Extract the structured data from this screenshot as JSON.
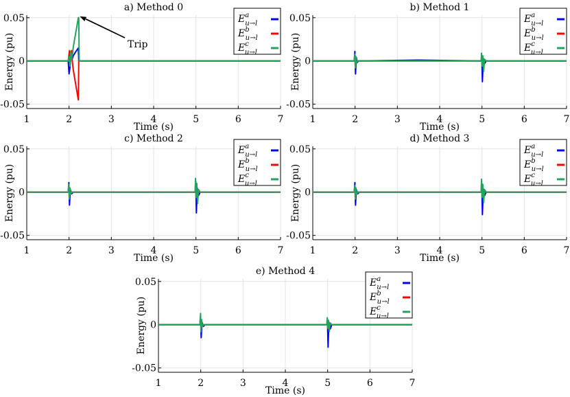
{
  "chart_data": [
    {
      "type": "line",
      "title": "a) Method 0",
      "xlabel": "Time (s)",
      "ylabel": "Energy (pu)",
      "xlim": [
        1,
        7
      ],
      "ylim": [
        -0.055,
        0.053
      ],
      "xticks": [
        "1",
        "2",
        "3",
        "4",
        "5",
        "6",
        "7"
      ],
      "yticks": [
        {
          "v": 0.05,
          "label": "0.05"
        },
        {
          "v": 0,
          "label": "0"
        },
        {
          "v": -0.05,
          "label": "-0.05"
        }
      ],
      "grid": true,
      "legend": "top-right",
      "annotation": {
        "text": "Trip",
        "points_to": [
          2.22,
          0.05
        ]
      },
      "series": [
        {
          "name": "E_{u→l}^a",
          "color": "#0000ff",
          "points": [
            [
              1,
              0
            ],
            [
              1.98,
              0
            ],
            [
              2.0,
              -0.015
            ],
            [
              2.02,
              -0.008
            ],
            [
              2.04,
              0.004
            ],
            [
              2.06,
              0.01
            ],
            [
              2.08,
              0.003
            ],
            [
              2.1,
              0.006
            ],
            [
              2.15,
              0.01
            ],
            [
              2.22,
              0.015
            ],
            [
              2.23,
              0
            ],
            [
              7,
              0
            ]
          ]
        },
        {
          "name": "E_{u→l}^b",
          "color": "#ff0000",
          "points": [
            [
              1,
              0
            ],
            [
              1.98,
              0
            ],
            [
              2.01,
              0.012
            ],
            [
              2.03,
              0.004
            ],
            [
              2.06,
              0.012
            ],
            [
              2.08,
              -0.002
            ],
            [
              2.1,
              -0.01
            ],
            [
              2.15,
              -0.025
            ],
            [
              2.22,
              -0.045
            ],
            [
              2.23,
              0
            ],
            [
              7,
              0
            ]
          ]
        },
        {
          "name": "E_{u→l}^c",
          "color": "#1fa65a",
          "points": [
            [
              1,
              0
            ],
            [
              1.98,
              0
            ],
            [
              2.0,
              0.005
            ],
            [
              2.02,
              -0.006
            ],
            [
              2.04,
              0.011
            ],
            [
              2.06,
              0.002
            ],
            [
              2.08,
              0.008
            ],
            [
              2.1,
              0.016
            ],
            [
              2.22,
              0.05
            ],
            [
              2.23,
              0.05
            ],
            [
              2.24,
              0
            ],
            [
              7,
              0
            ]
          ]
        }
      ]
    },
    {
      "type": "line",
      "title": "b) Method 1",
      "xlabel": "Time (s)",
      "ylabel": "Energy (pu)",
      "xlim": [
        1,
        7
      ],
      "ylim": [
        -0.055,
        0.053
      ],
      "xticks": [
        "1",
        "2",
        "3",
        "4",
        "5",
        "6",
        "7"
      ],
      "yticks": [
        {
          "v": 0.05,
          "label": "0.05"
        },
        {
          "v": 0,
          "label": "0"
        },
        {
          "v": -0.05,
          "label": "-0.05"
        }
      ],
      "grid": true,
      "legend": "top-right",
      "series": [
        {
          "name": "E_{u→l}^a",
          "color": "#0000ff",
          "points": [
            [
              1,
              0
            ],
            [
              1.98,
              0
            ],
            [
              1.995,
              0.011
            ],
            [
              2.01,
              -0.015
            ],
            [
              2.03,
              0.004
            ],
            [
              2.05,
              -0.002
            ],
            [
              2.08,
              0
            ],
            [
              3.5,
              0.001
            ],
            [
              4.98,
              0
            ],
            [
              4.995,
              0.006
            ],
            [
              5.01,
              -0.024
            ],
            [
              5.03,
              0.003
            ],
            [
              5.05,
              -0.004
            ],
            [
              5.1,
              0
            ],
            [
              7,
              0
            ]
          ]
        },
        {
          "name": "E_{u→l}^b",
          "color": "#ff0000",
          "points": [
            [
              1,
              0
            ],
            [
              1.99,
              0
            ],
            [
              2.0,
              0.006
            ],
            [
              2.01,
              -0.006
            ],
            [
              2.03,
              0
            ],
            [
              4.99,
              0
            ],
            [
              5.0,
              0.004
            ],
            [
              5.02,
              -0.006
            ],
            [
              5.04,
              0
            ],
            [
              7,
              0
            ]
          ]
        },
        {
          "name": "E_{u→l}^c",
          "color": "#1fa65a",
          "points": [
            [
              1,
              0
            ],
            [
              1.98,
              0
            ],
            [
              1.995,
              0.008
            ],
            [
              2.005,
              -0.008
            ],
            [
              2.02,
              0.005
            ],
            [
              2.04,
              -0.002
            ],
            [
              2.07,
              0
            ],
            [
              4.98,
              0
            ],
            [
              4.99,
              0.009
            ],
            [
              5.0,
              -0.006
            ],
            [
              5.02,
              0.006
            ],
            [
              5.04,
              -0.012
            ],
            [
              5.06,
              0.002
            ],
            [
              5.1,
              0
            ],
            [
              7,
              0
            ]
          ]
        }
      ]
    },
    {
      "type": "line",
      "title": "c) Method 2",
      "xlabel": "Time (s)",
      "ylabel": "Energy (pu)",
      "xlim": [
        1,
        7
      ],
      "ylim": [
        -0.055,
        0.053
      ],
      "xticks": [
        "1",
        "2",
        "3",
        "4",
        "5",
        "6",
        "7"
      ],
      "yticks": [
        {
          "v": 0.05,
          "label": "0.05"
        },
        {
          "v": 0,
          "label": "0"
        },
        {
          "v": -0.05,
          "label": "-0.05"
        }
      ],
      "grid": true,
      "legend": "top-right",
      "series": [
        {
          "name": "E_{u→l}^a",
          "color": "#0000ff",
          "points": [
            [
              1,
              0
            ],
            [
              1.98,
              0
            ],
            [
              1.995,
              0.011
            ],
            [
              2.01,
              -0.015
            ],
            [
              2.03,
              0.003
            ],
            [
              2.06,
              -0.002
            ],
            [
              2.1,
              0
            ],
            [
              4.98,
              0
            ],
            [
              4.995,
              0.012
            ],
            [
              5.01,
              -0.024
            ],
            [
              5.03,
              0.005
            ],
            [
              5.06,
              -0.004
            ],
            [
              5.1,
              0
            ],
            [
              7,
              0
            ]
          ]
        },
        {
          "name": "E_{u→l}^b",
          "color": "#ff0000",
          "points": [
            [
              1,
              0
            ],
            [
              1.99,
              0
            ],
            [
              2.0,
              0.005
            ],
            [
              2.01,
              -0.005
            ],
            [
              2.03,
              0
            ],
            [
              4.99,
              0
            ],
            [
              5.0,
              0.005
            ],
            [
              5.02,
              -0.006
            ],
            [
              5.04,
              0
            ],
            [
              7,
              0
            ]
          ]
        },
        {
          "name": "E_{u→l}^c",
          "color": "#1fa65a",
          "points": [
            [
              1,
              0
            ],
            [
              1.98,
              0
            ],
            [
              1.995,
              0.009
            ],
            [
              2.005,
              -0.008
            ],
            [
              2.02,
              0.005
            ],
            [
              2.04,
              -0.002
            ],
            [
              2.07,
              0
            ],
            [
              4.98,
              0
            ],
            [
              4.99,
              0.016
            ],
            [
              5.0,
              -0.006
            ],
            [
              5.02,
              0.01
            ],
            [
              5.04,
              -0.013
            ],
            [
              5.06,
              0.003
            ],
            [
              5.1,
              0
            ],
            [
              7,
              0
            ]
          ]
        }
      ]
    },
    {
      "type": "line",
      "title": "d) Method 3",
      "xlabel": "Time (s)",
      "ylabel": "Energy (pu)",
      "xlim": [
        1,
        7
      ],
      "ylim": [
        -0.055,
        0.053
      ],
      "xticks": [
        "1",
        "2",
        "3",
        "4",
        "5",
        "6",
        "7"
      ],
      "yticks": [
        {
          "v": 0.05,
          "label": "0.05"
        },
        {
          "v": 0,
          "label": "0"
        },
        {
          "v": -0.05,
          "label": "-0.05"
        }
      ],
      "grid": true,
      "legend": "top-right",
      "series": [
        {
          "name": "E_{u→l}^a",
          "color": "#0000ff",
          "points": [
            [
              1,
              0
            ],
            [
              1.98,
              0
            ],
            [
              1.995,
              0.011
            ],
            [
              2.01,
              -0.015
            ],
            [
              2.03,
              0.003
            ],
            [
              2.06,
              -0.002
            ],
            [
              2.1,
              0
            ],
            [
              4.98,
              0
            ],
            [
              4.995,
              0.01
            ],
            [
              5.01,
              -0.026
            ],
            [
              5.03,
              0.004
            ],
            [
              5.06,
              -0.004
            ],
            [
              5.1,
              0
            ],
            [
              7,
              0
            ]
          ]
        },
        {
          "name": "E_{u→l}^b",
          "color": "#ff0000",
          "points": [
            [
              1,
              0
            ],
            [
              1.99,
              0
            ],
            [
              2.0,
              0.005
            ],
            [
              2.01,
              -0.005
            ],
            [
              2.03,
              0
            ],
            [
              4.99,
              0
            ],
            [
              5.0,
              0.004
            ],
            [
              5.02,
              -0.006
            ],
            [
              5.04,
              0
            ],
            [
              7,
              0
            ]
          ]
        },
        {
          "name": "E_{u→l}^c",
          "color": "#1fa65a",
          "points": [
            [
              1,
              0
            ],
            [
              1.98,
              0
            ],
            [
              1.995,
              0.008
            ],
            [
              2.005,
              -0.008
            ],
            [
              2.02,
              0.005
            ],
            [
              2.04,
              -0.002
            ],
            [
              2.07,
              0
            ],
            [
              4.98,
              0
            ],
            [
              4.99,
              0.015
            ],
            [
              5.0,
              -0.006
            ],
            [
              5.02,
              0.009
            ],
            [
              5.04,
              -0.012
            ],
            [
              5.06,
              0.003
            ],
            [
              5.1,
              0
            ],
            [
              7,
              0
            ]
          ]
        }
      ]
    },
    {
      "type": "line",
      "title": "e) Method 4",
      "xlabel": "Time (s)",
      "ylabel": "Energy (pu)",
      "xlim": [
        1,
        7
      ],
      "ylim": [
        -0.055,
        0.053
      ],
      "xticks": [
        "1",
        "2",
        "3",
        "4",
        "5",
        "6",
        "7"
      ],
      "yticks": [
        {
          "v": 0.05,
          "label": "0.05"
        },
        {
          "v": 0,
          "label": "0"
        },
        {
          "v": -0.05,
          "label": "-0.05"
        }
      ],
      "grid": true,
      "legend": "top-right",
      "series": [
        {
          "name": "E_{u→l}^a",
          "color": "#0000ff",
          "points": [
            [
              1,
              0
            ],
            [
              1.98,
              0
            ],
            [
              1.995,
              0.01
            ],
            [
              2.01,
              -0.015
            ],
            [
              2.03,
              0.003
            ],
            [
              2.06,
              -0.002
            ],
            [
              2.1,
              0
            ],
            [
              4.98,
              0
            ],
            [
              4.995,
              0.006
            ],
            [
              5.01,
              -0.026
            ],
            [
              5.03,
              0.003
            ],
            [
              5.06,
              -0.005
            ],
            [
              5.1,
              0
            ],
            [
              7,
              0
            ]
          ]
        },
        {
          "name": "E_{u→l}^b",
          "color": "#ff0000",
          "points": [
            [
              1,
              0
            ],
            [
              1.99,
              0
            ],
            [
              2.0,
              0.005
            ],
            [
              2.01,
              -0.005
            ],
            [
              2.03,
              0
            ],
            [
              4.99,
              0
            ],
            [
              5.0,
              0.004
            ],
            [
              5.02,
              -0.005
            ],
            [
              5.04,
              0
            ],
            [
              7,
              0
            ]
          ]
        },
        {
          "name": "E_{u→l}^c",
          "color": "#1fa65a",
          "points": [
            [
              1,
              0
            ],
            [
              1.98,
              0
            ],
            [
              1.995,
              0.013
            ],
            [
              2.005,
              -0.008
            ],
            [
              2.02,
              0.006
            ],
            [
              2.04,
              -0.002
            ],
            [
              2.07,
              0
            ],
            [
              4.98,
              0
            ],
            [
              4.99,
              0.008
            ],
            [
              5.0,
              -0.004
            ],
            [
              5.02,
              0.005
            ],
            [
              5.04,
              -0.008
            ],
            [
              5.06,
              0.002
            ],
            [
              5.1,
              0
            ],
            [
              7,
              0
            ]
          ]
        }
      ]
    }
  ]
}
